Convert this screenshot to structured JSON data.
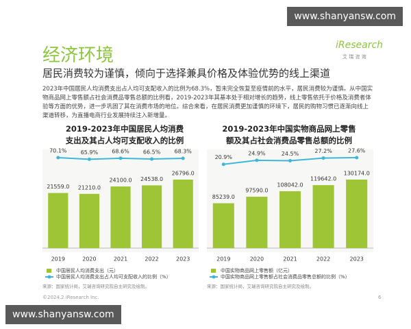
{
  "watermark_top": "www.shanyansw.com",
  "watermark_bottom": "www.shanyansw.com",
  "header": {
    "title": "经济环境",
    "logo": "iResearch",
    "logo_sub": "艾 瑞 咨 询",
    "subtitle": "居民消费较为谨慎，倾向于选择兼具价格及体验优势的线上渠道",
    "paragraph": "2023年中国居民人均消费支出占人均可支配收入的比例为68.3%，暂未完全恢复至疫情前的水平，居民消费较为谨慎。从中国实物商品网上零售额占社会消费品零售总额的比例看，2019-2023年其基本处于相对增长的趋势，线上零售依托于价格及消费者体验等方面的优势，进一步巩固了其在消费市场的地位。综合来看，在居民消费更加谨慎的环境下，居民的购物习惯已逐渐向线上渠道转移，为直播电商行业发展持续注入新增量。"
  },
  "chart_data": [
    {
      "type": "bar",
      "title": "2019-2023年中国居民人均消费支出及其占人均可支配收入的比例",
      "categories": [
        "2019",
        "2020",
        "2021",
        "2022",
        "2023"
      ],
      "series": [
        {
          "name": "中国居民人均消费支出（元）",
          "color": "#9dc535",
          "values": [
            21559,
            21210,
            24100,
            24538,
            26796
          ],
          "value_labels": [
            "21559.0",
            "21210.0",
            "24100.0",
            "24538.0",
            "26796.0"
          ]
        },
        {
          "name": "中国居民人均消费支出占人均可支配收入的比例（%）",
          "color": "#3fb6d6",
          "axis": "y2",
          "values": [
            70.1,
            65.9,
            68.6,
            66.5,
            68.3
          ],
          "value_labels": [
            "70.1%",
            "65.9%",
            "68.6%",
            "66.5%",
            "68.3%"
          ]
        }
      ],
      "source": "来源：国家统计局，艾瑞咨询研究院自主研究及绘制。"
    },
    {
      "type": "bar",
      "title": "2019-2023年中国实物商品网上零售额及其占社会消费品零售总额的比例",
      "categories": [
        "2019",
        "2020",
        "2021",
        "2022",
        "2023"
      ],
      "series": [
        {
          "name": "中国实物商品网上零售额（亿元）",
          "color": "#9dc535",
          "values": [
            85239,
            97590,
            108042,
            119642,
            130174
          ],
          "value_labels": [
            "85239.0",
            "97590.0",
            "108042.0",
            "119642.0",
            "130174.0"
          ]
        },
        {
          "name": "中国实物商品网上零售额占社会消费品零售总额的比例（%）",
          "color": "#3fb6d6",
          "axis": "y2",
          "values": [
            20.9,
            24.9,
            24.5,
            27.2,
            27.6
          ],
          "value_labels": [
            "20.9%",
            "24.9%",
            "24.5%",
            "27.2%",
            "27.6%"
          ]
        }
      ],
      "source": "来源：国家统计局，艾瑞咨询研究院自主研究及绘制。"
    }
  ],
  "footer": {
    "copyright": "©2024.2 iResearch Inc.",
    "page": "6"
  }
}
